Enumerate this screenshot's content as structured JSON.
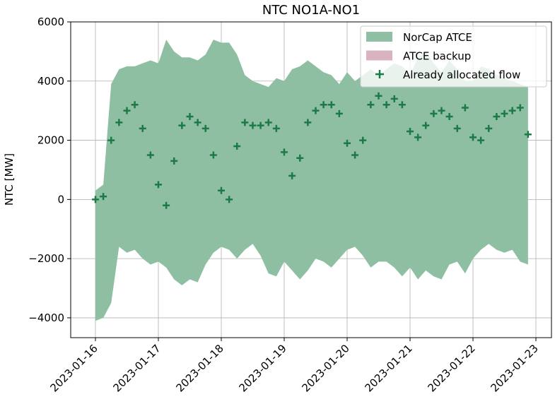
{
  "chart_data": {
    "type": "area",
    "title": "NTC NO1A-NO1",
    "ylabel": "NTC [MW]",
    "x": [
      "2023-01-16T00:00",
      "2023-01-16T03:00",
      "2023-01-16T06:00",
      "2023-01-16T09:00",
      "2023-01-16T12:00",
      "2023-01-16T15:00",
      "2023-01-16T18:00",
      "2023-01-16T21:00",
      "2023-01-17T00:00",
      "2023-01-17T03:00",
      "2023-01-17T06:00",
      "2023-01-17T09:00",
      "2023-01-17T12:00",
      "2023-01-17T15:00",
      "2023-01-17T18:00",
      "2023-01-17T21:00",
      "2023-01-18T00:00",
      "2023-01-18T03:00",
      "2023-01-18T06:00",
      "2023-01-18T09:00",
      "2023-01-18T12:00",
      "2023-01-18T15:00",
      "2023-01-18T18:00",
      "2023-01-18T21:00",
      "2023-01-19T00:00",
      "2023-01-19T03:00",
      "2023-01-19T06:00",
      "2023-01-19T09:00",
      "2023-01-19T12:00",
      "2023-01-19T15:00",
      "2023-01-19T18:00",
      "2023-01-19T21:00",
      "2023-01-20T00:00",
      "2023-01-20T03:00",
      "2023-01-20T06:00",
      "2023-01-20T09:00",
      "2023-01-20T12:00",
      "2023-01-20T15:00",
      "2023-01-20T18:00",
      "2023-01-20T21:00",
      "2023-01-21T00:00",
      "2023-01-21T03:00",
      "2023-01-21T06:00",
      "2023-01-21T09:00",
      "2023-01-21T12:00",
      "2023-01-21T15:00",
      "2023-01-21T18:00",
      "2023-01-21T21:00",
      "2023-01-22T00:00",
      "2023-01-22T03:00",
      "2023-01-22T06:00",
      "2023-01-22T09:00",
      "2023-01-22T12:00",
      "2023-01-22T15:00",
      "2023-01-22T18:00",
      "2023-01-22T21:00"
    ],
    "series": [
      {
        "name": "NorCap ATCE",
        "type": "band",
        "color": "#8fbfa3",
        "values": [
          300,
          500,
          3900,
          4400,
          4500,
          4500,
          4600,
          4700,
          4600,
          5400,
          5000,
          4800,
          4800,
          4700,
          4900,
          5400,
          5300,
          5300,
          4900,
          4200,
          4000,
          3900,
          3800,
          4100,
          4000,
          4400,
          4500,
          4700,
          4500,
          4300,
          4200,
          3900,
          4300,
          4000,
          4200,
          4400,
          4200,
          4400,
          4600,
          4500,
          4200,
          4800,
          5000,
          4600,
          4300,
          4700,
          4400,
          4000,
          4000,
          4500,
          4400,
          4200,
          4100,
          4000,
          3900,
          3800
        ],
        "lower": [
          -4100,
          -4000,
          -3500,
          -1600,
          -1800,
          -1700,
          -2000,
          -2200,
          -2100,
          -2300,
          -2700,
          -2900,
          -2700,
          -2800,
          -2200,
          -1800,
          -1600,
          -1700,
          -2000,
          -1700,
          -1500,
          -1900,
          -2500,
          -2600,
          -2100,
          -2400,
          -2700,
          -2400,
          -2000,
          -2100,
          -2300,
          -2000,
          -1700,
          -1600,
          -1900,
          -2300,
          -2100,
          -2100,
          -2300,
          -2600,
          -2300,
          -2700,
          -2400,
          -2600,
          -2700,
          -2200,
          -2100,
          -2500,
          -2000,
          -1700,
          -1500,
          -1700,
          -1800,
          -1700,
          -2100,
          -2200
        ]
      },
      {
        "name": "ATCE backup",
        "type": "legend-only",
        "color": "#d9b3bd"
      },
      {
        "name": "Already allocated flow",
        "type": "scatter",
        "color": "#1b7a46",
        "values": [
          0,
          100,
          2000,
          2600,
          3000,
          3200,
          2400,
          1500,
          500,
          -200,
          1300,
          2500,
          2800,
          2600,
          2400,
          1500,
          300,
          0,
          1800,
          2600,
          2500,
          2500,
          2600,
          2400,
          1600,
          800,
          1400,
          2600,
          3000,
          3200,
          3200,
          2900,
          1900,
          1500,
          2000,
          3200,
          3500,
          3200,
          3400,
          3200,
          2300,
          2100,
          2500,
          2900,
          3000,
          2800,
          2400,
          3100,
          2100,
          2000,
          2400,
          2800,
          2900,
          3000,
          3100,
          2200
        ]
      }
    ],
    "xlim": [
      "2023-01-15T14:34",
      "2023-01-23T05:56"
    ],
    "xticks": [
      "2023-01-16",
      "2023-01-17",
      "2023-01-18",
      "2023-01-19",
      "2023-01-20",
      "2023-01-21",
      "2023-01-22",
      "2023-01-23"
    ],
    "ylim": [
      -4670,
      6000
    ],
    "yticks": [
      -4000,
      -2000,
      0,
      2000,
      4000,
      6000
    ],
    "grid": true,
    "legend": "upper right"
  }
}
